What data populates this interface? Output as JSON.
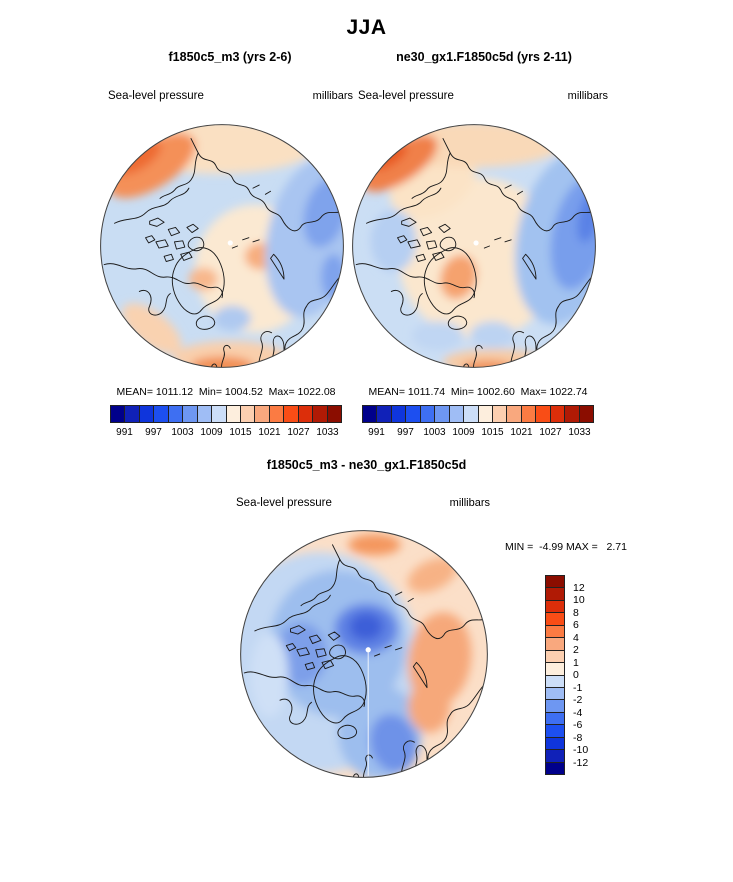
{
  "title": "JJA",
  "panels": {
    "left": {
      "model_title": "f1850c5_m3 (yrs 2-6)",
      "field": "Sea-level pressure",
      "units": "millibars",
      "stats_line": "MEAN= 1011.12  Min= 1004.52  Max= 1022.08"
    },
    "right": {
      "model_title": "ne30_gx1.F1850c5d (yrs 2-11)",
      "field": "Sea-level pressure",
      "units": "millibars",
      "stats_line": "MEAN= 1011.74  Min= 1002.60  Max= 1022.74"
    },
    "diff": {
      "model_title": "f1850c5_m3 - ne30_gx1.F1850c5d",
      "field": "Sea-level pressure",
      "units": "millibars",
      "stats_line": "MIN =  -4.99 MAX =   2.71"
    }
  },
  "colorbar_abs": {
    "ticks": [
      "991",
      "997",
      "1003",
      "1009",
      "1015",
      "1021",
      "1027",
      "1033"
    ],
    "colors": [
      "#00008b",
      "#1021b8",
      "#0f35dc",
      "#1d4ff0",
      "#3e6ff2",
      "#6e97f2",
      "#9fbdf5",
      "#ccdef8",
      "#fdeedd",
      "#fccfb0",
      "#f9a87e",
      "#fb7b43",
      "#f94d16",
      "#dc2e0a",
      "#b01a05",
      "#8b0d00"
    ]
  },
  "colorbar_diff": {
    "ticks": [
      "12",
      "10",
      "8",
      "6",
      "4",
      "2",
      "1",
      "0",
      "-1",
      "-2",
      "-4",
      "-6",
      "-8",
      "-10",
      "-12"
    ],
    "colors": [
      "#8b0d00",
      "#b01a05",
      "#dc2e0a",
      "#f94d16",
      "#fb7b43",
      "#f9a87e",
      "#fccfb0",
      "#fdeedd",
      "#ccdef8",
      "#9fbdf5",
      "#6e97f2",
      "#3e6ff2",
      "#1d4ff0",
      "#0f35dc",
      "#1021b8",
      "#00008b"
    ]
  },
  "chart_data": [
    {
      "type": "heatmap",
      "subtype": "polar-stereographic-contour-map",
      "title": "f1850c5_m3 (yrs 2-6)",
      "season": "JJA",
      "variable": "Sea-level pressure",
      "units": "millibars",
      "stats": {
        "mean": 1011.12,
        "min": 1004.52,
        "max": 1022.08
      },
      "contour_levels": [
        991,
        994,
        997,
        1000,
        1003,
        1006,
        1009,
        1012,
        1015,
        1018,
        1021,
        1024,
        1027,
        1030,
        1033
      ],
      "labeled_ticks": [
        991,
        997,
        1003,
        1009,
        1015,
        1021,
        1027,
        1033
      ],
      "legend_position": "bottom",
      "palette": [
        "#00008b",
        "#1021b8",
        "#0f35dc",
        "#1d4ff0",
        "#3e6ff2",
        "#6e97f2",
        "#9fbdf5",
        "#ccdef8",
        "#fdeedd",
        "#fccfb0",
        "#f9a87e",
        "#fb7b43",
        "#f94d16",
        "#dc2e0a",
        "#b01a05",
        "#8b0d00"
      ]
    },
    {
      "type": "heatmap",
      "subtype": "polar-stereographic-contour-map",
      "title": "ne30_gx1.F1850c5d (yrs 2-11)",
      "season": "JJA",
      "variable": "Sea-level pressure",
      "units": "millibars",
      "stats": {
        "mean": 1011.74,
        "min": 1002.6,
        "max": 1022.74
      },
      "contour_levels": [
        991,
        994,
        997,
        1000,
        1003,
        1006,
        1009,
        1012,
        1015,
        1018,
        1021,
        1024,
        1027,
        1030,
        1033
      ],
      "labeled_ticks": [
        991,
        997,
        1003,
        1009,
        1015,
        1021,
        1027,
        1033
      ],
      "legend_position": "bottom",
      "palette": [
        "#00008b",
        "#1021b8",
        "#0f35dc",
        "#1d4ff0",
        "#3e6ff2",
        "#6e97f2",
        "#9fbdf5",
        "#ccdef8",
        "#fdeedd",
        "#fccfb0",
        "#f9a87e",
        "#fb7b43",
        "#f94d16",
        "#dc2e0a",
        "#b01a05",
        "#8b0d00"
      ]
    },
    {
      "type": "heatmap",
      "subtype": "polar-stereographic-contour-map",
      "title": "f1850c5_m3 - ne30_gx1.F1850c5d",
      "season": "JJA",
      "variable": "Sea-level pressure difference",
      "units": "millibars",
      "stats": {
        "min": -4.99,
        "max": 2.71
      },
      "contour_levels": [
        -12,
        -10,
        -8,
        -6,
        -4,
        -2,
        -1,
        0,
        1,
        2,
        4,
        6,
        8,
        10,
        12
      ],
      "labeled_ticks": [
        12,
        10,
        8,
        6,
        4,
        2,
        1,
        0,
        -1,
        -2,
        -4,
        -6,
        -8,
        -10,
        -12
      ],
      "legend_position": "right",
      "palette": [
        "#8b0d00",
        "#b01a05",
        "#dc2e0a",
        "#f94d16",
        "#fb7b43",
        "#f9a87e",
        "#fccfb0",
        "#fdeedd",
        "#ccdef8",
        "#9fbdf5",
        "#6e97f2",
        "#3e6ff2",
        "#1d4ff0",
        "#0f35dc",
        "#1021b8",
        "#00008b"
      ]
    }
  ]
}
